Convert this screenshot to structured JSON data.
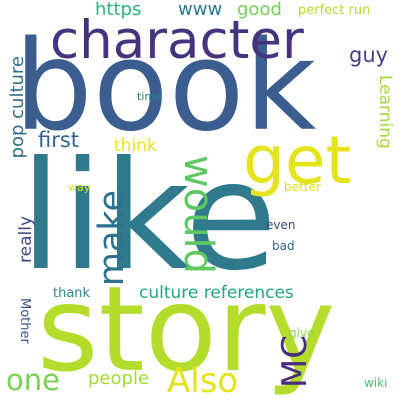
{
  "word_cloud": {
    "background": "#ffffff",
    "words": [
      {
        "text": "book",
        "color": "#3b5d8f"
      },
      {
        "text": "like",
        "color": "#2f7a8c"
      },
      {
        "text": "story",
        "color": "#b4dd2b"
      },
      {
        "text": "character",
        "color": "#46337e"
      },
      {
        "text": "get",
        "color": "#e5e31b"
      },
      {
        "text": "would",
        "color": "#5ec962"
      },
      {
        "text": "make",
        "color": "#2c728e"
      },
      {
        "text": "Also",
        "color": "#e2e418"
      },
      {
        "text": "MC",
        "color": "#472d7b"
      },
      {
        "text": "one",
        "color": "#7ad151"
      },
      {
        "text": "culture references",
        "color": "#21a585"
      },
      {
        "text": "pop culture",
        "color": "#2e6f8e"
      },
      {
        "text": "first",
        "color": "#33628d"
      },
      {
        "text": "think",
        "color": "#e4e51d"
      },
      {
        "text": "really",
        "color": "#3f4788"
      },
      {
        "text": "Learning",
        "color": "#a5db36"
      },
      {
        "text": "guy",
        "color": "#414487"
      },
      {
        "text": "https",
        "color": "#2fb47c"
      },
      {
        "text": "www",
        "color": "#2a788e"
      },
      {
        "text": "good",
        "color": "#75d054"
      },
      {
        "text": "perfect run",
        "color": "#b5de2b"
      },
      {
        "text": "people",
        "color": "#a2da37"
      },
      {
        "text": "Mother",
        "color": "#3c4f8a"
      },
      {
        "text": "thank",
        "color": "#25858e"
      },
      {
        "text": "time",
        "color": "#24868e"
      },
      {
        "text": "way",
        "color": "#d9e22a"
      },
      {
        "text": "better",
        "color": "#d5e21a"
      },
      {
        "text": "even",
        "color": "#404688"
      },
      {
        "text": "bad",
        "color": "#32648e"
      },
      {
        "text": "give",
        "color": "#8bd646"
      },
      {
        "text": "wiki",
        "color": "#4ac16d"
      }
    ]
  }
}
